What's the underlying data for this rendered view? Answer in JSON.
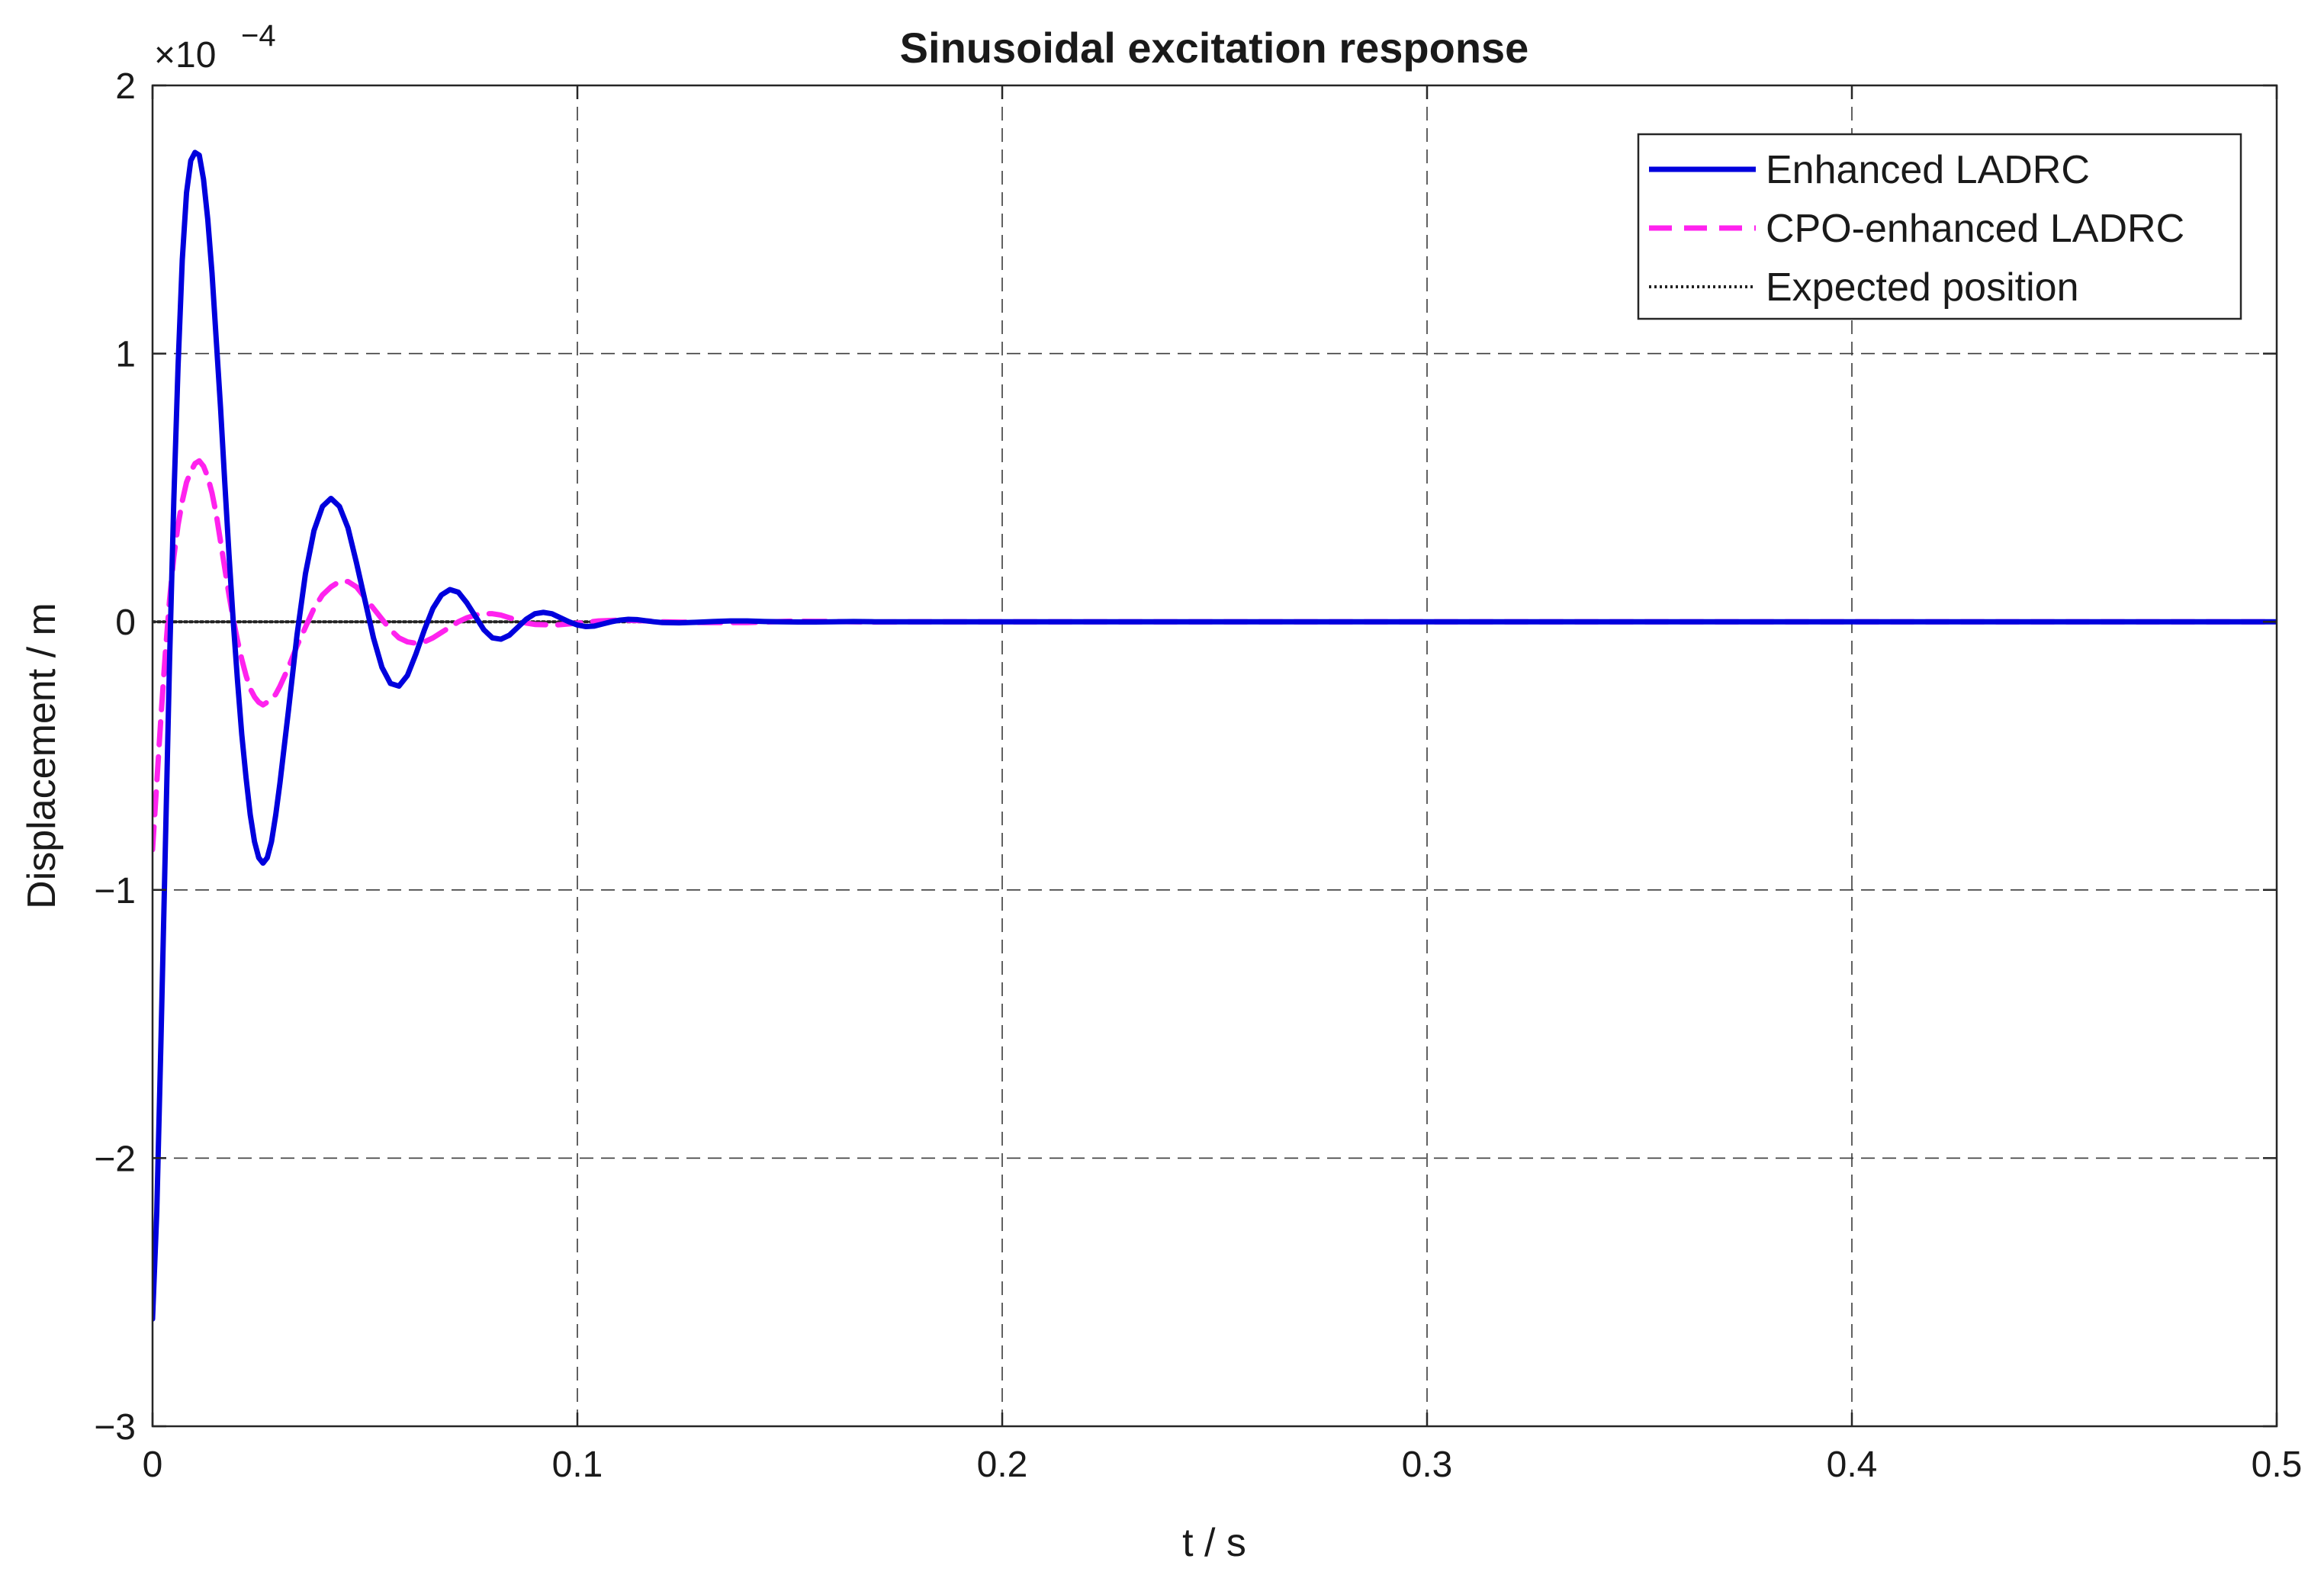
{
  "chart_data": {
    "type": "line",
    "title": "Sinusoidal excitation response",
    "xlabel": "t / s",
    "ylabel": "Displacement / m",
    "xlim": [
      0,
      0.5
    ],
    "ylim": [
      -3,
      2
    ],
    "y_multiplier_base": "×10",
    "y_multiplier_exp": "−4",
    "xticks": [
      0,
      0.1,
      0.2,
      0.3,
      0.4,
      0.5
    ],
    "xtick_labels": [
      "0",
      "0.1",
      "0.2",
      "0.3",
      "0.4",
      "0.5"
    ],
    "yticks": [
      -3,
      -2,
      -1,
      0,
      1,
      2
    ],
    "ytick_labels": [
      "−3",
      "−2",
      "−1",
      "0",
      "1",
      "2"
    ],
    "grid": true,
    "legend_position": "top-right",
    "series": [
      {
        "name": "Enhanced LADRC",
        "color": "#0000dd",
        "style": "solid",
        "x": [
          0,
          0.001,
          0.002,
          0.003,
          0.004,
          0.005,
          0.006,
          0.007,
          0.008,
          0.009,
          0.01,
          0.011,
          0.012,
          0.013,
          0.014,
          0.015,
          0.016,
          0.017,
          0.018,
          0.019,
          0.02,
          0.021,
          0.022,
          0.023,
          0.024,
          0.025,
          0.026,
          0.027,
          0.028,
          0.029,
          0.03,
          0.032,
          0.034,
          0.036,
          0.038,
          0.04,
          0.042,
          0.044,
          0.046,
          0.048,
          0.05,
          0.052,
          0.054,
          0.056,
          0.058,
          0.06,
          0.062,
          0.064,
          0.066,
          0.068,
          0.07,
          0.072,
          0.074,
          0.076,
          0.078,
          0.08,
          0.082,
          0.084,
          0.086,
          0.088,
          0.09,
          0.092,
          0.094,
          0.096,
          0.098,
          0.1,
          0.102,
          0.104,
          0.106,
          0.108,
          0.11,
          0.112,
          0.114,
          0.116,
          0.118,
          0.12,
          0.124,
          0.128,
          0.132,
          0.136,
          0.14,
          0.144,
          0.148,
          0.152,
          0.156,
          0.16,
          0.165,
          0.17,
          0.175,
          0.18,
          0.185,
          0.19,
          0.2,
          0.25,
          0.3,
          0.35,
          0.4,
          0.45,
          0.5
        ],
        "y": [
          -2.6,
          -2.2,
          -1.55,
          -0.85,
          -0.15,
          0.45,
          0.95,
          1.35,
          1.6,
          1.72,
          1.75,
          1.74,
          1.65,
          1.5,
          1.3,
          1.05,
          0.8,
          0.52,
          0.25,
          0.0,
          -0.22,
          -0.42,
          -0.58,
          -0.72,
          -0.82,
          -0.88,
          -0.9,
          -0.88,
          -0.82,
          -0.72,
          -0.6,
          -0.33,
          -0.05,
          0.18,
          0.34,
          0.43,
          0.46,
          0.43,
          0.35,
          0.22,
          0.08,
          -0.06,
          -0.17,
          -0.23,
          -0.24,
          -0.2,
          -0.12,
          -0.03,
          0.05,
          0.1,
          0.12,
          0.11,
          0.07,
          0.02,
          -0.03,
          -0.06,
          -0.065,
          -0.05,
          -0.02,
          0.01,
          0.03,
          0.035,
          0.03,
          0.015,
          0.0,
          -0.012,
          -0.018,
          -0.016,
          -0.008,
          0.0,
          0.006,
          0.009,
          0.008,
          0.004,
          0.0,
          -0.003,
          -0.004,
          -0.002,
          0.001,
          0.003,
          0.003,
          0.001,
          0.0,
          -0.001,
          -0.001,
          0.0,
          0.001,
          0.0,
          0.0,
          0.0,
          0.0,
          0.0,
          0.0,
          0.0,
          0.0,
          0.0,
          0.0,
          0.0,
          0.0
        ]
      },
      {
        "name": "CPO-enhanced LADRC",
        "color": "#ff22ee",
        "style": "dashed",
        "x": [
          0,
          0.001,
          0.002,
          0.003,
          0.004,
          0.005,
          0.006,
          0.007,
          0.008,
          0.009,
          0.01,
          0.011,
          0.012,
          0.013,
          0.014,
          0.015,
          0.016,
          0.017,
          0.018,
          0.019,
          0.02,
          0.021,
          0.022,
          0.023,
          0.024,
          0.025,
          0.026,
          0.027,
          0.028,
          0.029,
          0.03,
          0.032,
          0.034,
          0.036,
          0.038,
          0.04,
          0.042,
          0.044,
          0.046,
          0.048,
          0.05,
          0.052,
          0.054,
          0.056,
          0.058,
          0.06,
          0.062,
          0.064,
          0.066,
          0.068,
          0.07,
          0.072,
          0.074,
          0.076,
          0.078,
          0.08,
          0.082,
          0.084,
          0.086,
          0.088,
          0.09,
          0.095,
          0.1,
          0.105,
          0.11,
          0.115,
          0.12,
          0.13,
          0.14,
          0.15,
          0.16,
          0.17,
          0.18,
          0.2,
          0.25,
          0.3,
          0.35,
          0.4,
          0.45,
          0.5
        ],
        "y": [
          -0.85,
          -0.6,
          -0.35,
          -0.12,
          0.08,
          0.24,
          0.36,
          0.45,
          0.52,
          0.56,
          0.59,
          0.6,
          0.58,
          0.54,
          0.48,
          0.4,
          0.3,
          0.2,
          0.1,
          0.01,
          -0.07,
          -0.14,
          -0.2,
          -0.25,
          -0.28,
          -0.3,
          -0.31,
          -0.3,
          -0.29,
          -0.27,
          -0.24,
          -0.17,
          -0.09,
          -0.02,
          0.05,
          0.1,
          0.13,
          0.15,
          0.15,
          0.13,
          0.09,
          0.05,
          0.01,
          -0.03,
          -0.06,
          -0.075,
          -0.08,
          -0.075,
          -0.06,
          -0.04,
          -0.02,
          0.0,
          0.015,
          0.025,
          0.03,
          0.03,
          0.025,
          0.015,
          0.005,
          -0.005,
          -0.01,
          -0.012,
          -0.005,
          0.003,
          0.006,
          0.004,
          0.0,
          -0.003,
          -0.003,
          0.002,
          0.001,
          -0.001,
          0.0,
          0.0,
          0.0,
          0.0,
          0.0,
          0.0,
          0.0,
          0.0
        ]
      },
      {
        "name": "Expected position",
        "color": "#222222",
        "style": "dotted",
        "x": [
          0,
          0.5
        ],
        "y": [
          0,
          0
        ]
      }
    ]
  }
}
